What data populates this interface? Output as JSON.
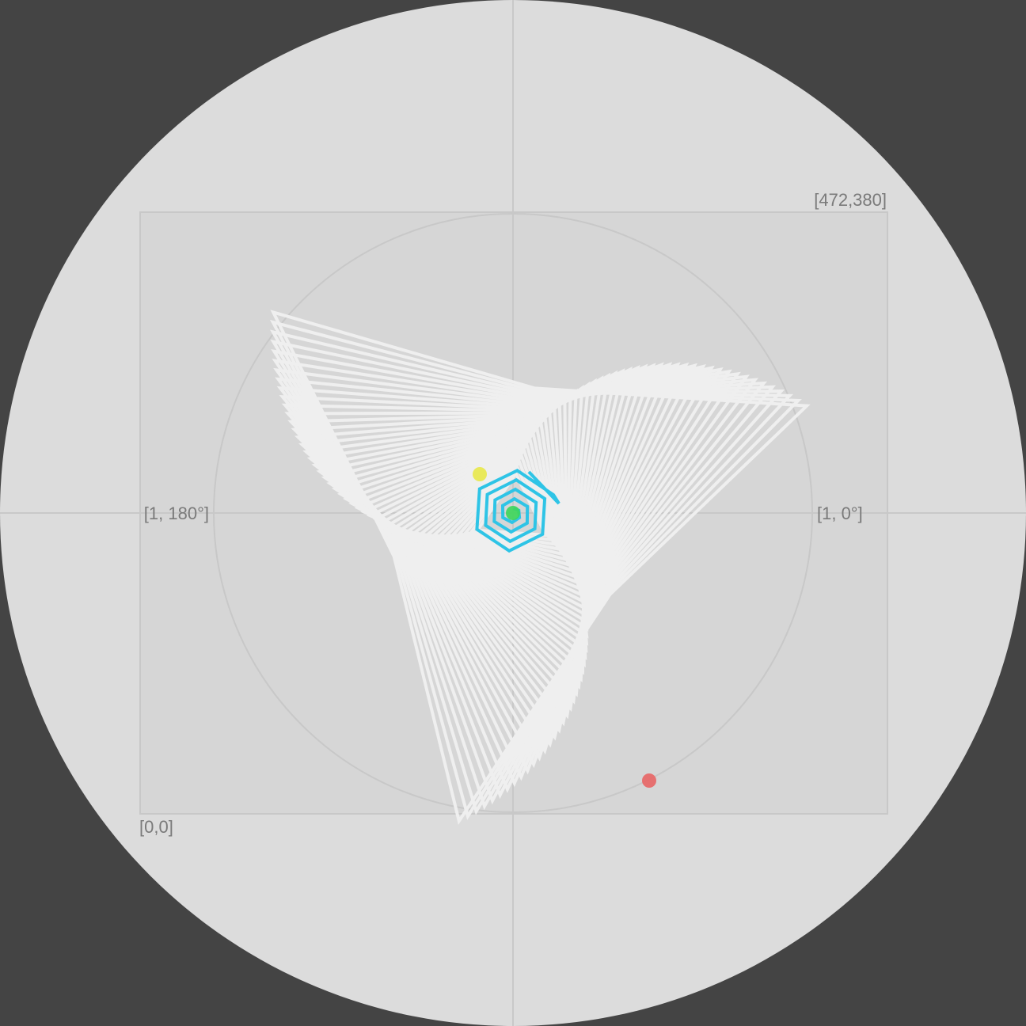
{
  "colors": {
    "background": "#444444",
    "disc": "#dcdcdc",
    "frame": "#d6d6d6",
    "guides": "#c8c8c8",
    "label": "#7a7a7a",
    "spiral_trail": "#efefef",
    "spiral_path": "#2ec4e6",
    "start_dot": "#3dd65a",
    "yellow_dot": "#e8e84a",
    "end_dot": "#e86565"
  },
  "labels": {
    "top_right": "[472,380]",
    "bottom_left": "[0,0]",
    "right_axis": "[1, 0°]",
    "left_axis": "[1, 180°]"
  },
  "markers": [
    {
      "name": "start-marker",
      "color_key": "start_dot"
    },
    {
      "name": "yellow-marker",
      "color_key": "yellow_dot"
    },
    {
      "name": "end-marker",
      "color_key": "end_dot"
    }
  ]
}
